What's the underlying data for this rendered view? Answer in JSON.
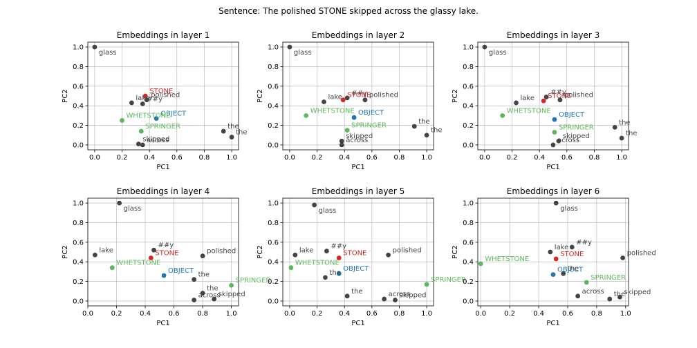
{
  "figure": {
    "suptitle": "Sentence: The polished STONE skipped across the glassy lake."
  },
  "colors": {
    "default": "#444444",
    "STONE": "#d62728",
    "OBJECT": "#1f77b4",
    "WHETSTONE": "#5cb85c",
    "SPRINGER": "#5cb85c",
    "grid": "#b0b0b0"
  },
  "chart_data": [
    {
      "type": "scatter",
      "title": "Embeddings in layer 1",
      "xlabel": "PC1",
      "ylabel": "PC2",
      "xlim": [
        -0.05,
        1.05
      ],
      "ylim": [
        -0.05,
        1.05
      ],
      "xticks": [
        "0.0",
        "0.2",
        "0.4",
        "0.6",
        "0.8",
        "1.0"
      ],
      "yticks": [
        "0.0",
        "0.2",
        "0.4",
        "0.6",
        "0.8",
        "1.0"
      ],
      "grid": true,
      "points": [
        {
          "label": "glass",
          "x": 0.0,
          "y": 1.0
        },
        {
          "label": "STONE",
          "x": 0.37,
          "y": 0.5
        },
        {
          "label": "polished",
          "x": 0.38,
          "y": 0.46
        },
        {
          "label": "lake",
          "x": 0.27,
          "y": 0.43
        },
        {
          "label": "##y",
          "x": 0.35,
          "y": 0.42
        },
        {
          "label": "OBJECT",
          "x": 0.45,
          "y": 0.27
        },
        {
          "label": "WHETSTONE",
          "x": 0.2,
          "y": 0.25
        },
        {
          "label": "SPRINGER",
          "x": 0.34,
          "y": 0.14
        },
        {
          "label": "skipped",
          "x": 0.32,
          "y": 0.01
        },
        {
          "label": "across",
          "x": 0.35,
          "y": 0.0
        },
        {
          "label": "the",
          "x": 0.94,
          "y": 0.14
        },
        {
          "label": "the",
          "x": 1.0,
          "y": 0.08
        }
      ]
    },
    {
      "type": "scatter",
      "title": "Embeddings in layer 2",
      "xlabel": "PC1",
      "ylabel": "PC2",
      "xlim": [
        -0.05,
        1.05
      ],
      "ylim": [
        -0.05,
        1.05
      ],
      "xticks": [
        "0.0",
        "0.2",
        "0.4",
        "0.6",
        "0.8",
        "1.0"
      ],
      "yticks": [
        "0.0",
        "0.2",
        "0.4",
        "0.6",
        "0.8",
        "1.0"
      ],
      "grid": true,
      "points": [
        {
          "label": "glass",
          "x": 0.0,
          "y": 1.0
        },
        {
          "label": "lake",
          "x": 0.25,
          "y": 0.44
        },
        {
          "label": "##y",
          "x": 0.42,
          "y": 0.48
        },
        {
          "label": "STONE",
          "x": 0.39,
          "y": 0.46
        },
        {
          "label": "polished",
          "x": 0.55,
          "y": 0.46
        },
        {
          "label": "WHETSTONE",
          "x": 0.12,
          "y": 0.3
        },
        {
          "label": "OBJECT",
          "x": 0.47,
          "y": 0.28
        },
        {
          "label": "SPRINGER",
          "x": 0.42,
          "y": 0.15
        },
        {
          "label": "skipped",
          "x": 0.38,
          "y": 0.04
        },
        {
          "label": "across",
          "x": 0.38,
          "y": 0.0
        },
        {
          "label": "the",
          "x": 0.91,
          "y": 0.19
        },
        {
          "label": "the",
          "x": 1.0,
          "y": 0.1
        }
      ]
    },
    {
      "type": "scatter",
      "title": "Embeddings in layer 3",
      "xlabel": "PC1",
      "ylabel": "PC2",
      "xlim": [
        -0.05,
        1.05
      ],
      "ylim": [
        -0.05,
        1.05
      ],
      "xticks": [
        "0.0",
        "0.2",
        "0.4",
        "0.6",
        "0.8",
        "1.0"
      ],
      "yticks": [
        "0.0",
        "0.2",
        "0.4",
        "0.6",
        "0.8",
        "1.0"
      ],
      "grid": true,
      "points": [
        {
          "label": "glass",
          "x": 0.0,
          "y": 1.0
        },
        {
          "label": "lake",
          "x": 0.23,
          "y": 0.43
        },
        {
          "label": "##y",
          "x": 0.45,
          "y": 0.49
        },
        {
          "label": "STONE",
          "x": 0.43,
          "y": 0.45
        },
        {
          "label": "polished",
          "x": 0.55,
          "y": 0.46
        },
        {
          "label": "WHETSTONE",
          "x": 0.13,
          "y": 0.3
        },
        {
          "label": "OBJECT",
          "x": 0.51,
          "y": 0.26
        },
        {
          "label": "SPRINGER",
          "x": 0.51,
          "y": 0.13
        },
        {
          "label": "skipped",
          "x": 0.54,
          "y": 0.04
        },
        {
          "label": "across",
          "x": 0.5,
          "y": 0.0
        },
        {
          "label": "the",
          "x": 0.95,
          "y": 0.18
        },
        {
          "label": "the",
          "x": 1.0,
          "y": 0.07
        }
      ]
    },
    {
      "type": "scatter",
      "title": "Embeddings in layer 4",
      "xlabel": "PC1",
      "ylabel": "PC2",
      "xlim": [
        0.0,
        1.05
      ],
      "ylim": [
        -0.05,
        1.05
      ],
      "xticks": [
        "0.0",
        "0.2",
        "0.4",
        "0.6",
        "0.8",
        "1.0"
      ],
      "yticks": [
        "0.0",
        "0.2",
        "0.4",
        "0.6",
        "0.8",
        "1.0"
      ],
      "grid": true,
      "points": [
        {
          "label": "glass",
          "x": 0.22,
          "y": 1.0
        },
        {
          "label": "lake",
          "x": 0.05,
          "y": 0.47
        },
        {
          "label": "##y",
          "x": 0.46,
          "y": 0.52
        },
        {
          "label": "STONE",
          "x": 0.44,
          "y": 0.44
        },
        {
          "label": "polished",
          "x": 0.8,
          "y": 0.46
        },
        {
          "label": "WHETSTONE",
          "x": 0.17,
          "y": 0.34
        },
        {
          "label": "OBJECT",
          "x": 0.53,
          "y": 0.26
        },
        {
          "label": "the",
          "x": 0.74,
          "y": 0.22
        },
        {
          "label": "SPRINGER",
          "x": 1.0,
          "y": 0.16
        },
        {
          "label": "the",
          "x": 0.8,
          "y": 0.08
        },
        {
          "label": "across",
          "x": 0.74,
          "y": 0.01
        },
        {
          "label": "skipped",
          "x": 0.88,
          "y": 0.02
        }
      ]
    },
    {
      "type": "scatter",
      "title": "Embeddings in layer 5",
      "xlabel": "PC1",
      "ylabel": "PC2",
      "xlim": [
        -0.05,
        1.05
      ],
      "ylim": [
        -0.05,
        1.05
      ],
      "xticks": [
        "0.0",
        "0.2",
        "0.4",
        "0.6",
        "0.8",
        "1.0"
      ],
      "yticks": [
        "0.0",
        "0.2",
        "0.4",
        "0.6",
        "0.8",
        "1.0"
      ],
      "grid": true,
      "points": [
        {
          "label": "glass",
          "x": 0.18,
          "y": 0.98
        },
        {
          "label": "lake",
          "x": 0.04,
          "y": 0.47
        },
        {
          "label": "##y",
          "x": 0.27,
          "y": 0.51
        },
        {
          "label": "STONE",
          "x": 0.36,
          "y": 0.44
        },
        {
          "label": "polished",
          "x": 0.72,
          "y": 0.47
        },
        {
          "label": "WHETSTONE",
          "x": 0.01,
          "y": 0.34
        },
        {
          "label": "OBJECT",
          "x": 0.36,
          "y": 0.28
        },
        {
          "label": "the",
          "x": 0.26,
          "y": 0.24
        },
        {
          "label": "the",
          "x": 0.42,
          "y": 0.05
        },
        {
          "label": "SPRINGER",
          "x": 1.0,
          "y": 0.17
        },
        {
          "label": "across",
          "x": 0.69,
          "y": 0.02
        },
        {
          "label": "skipped",
          "x": 0.77,
          "y": 0.01
        }
      ]
    },
    {
      "type": "scatter",
      "title": "Embeddings in layer 6",
      "xlabel": "PC1",
      "ylabel": "PC2",
      "xlim": [
        -0.02,
        1.02
      ],
      "ylim": [
        -0.05,
        1.05
      ],
      "xticks": [
        "0.0",
        "0.2",
        "0.4",
        "0.6",
        "0.8",
        "1.0"
      ],
      "yticks": [
        "0.0",
        "0.2",
        "0.4",
        "0.6",
        "0.8",
        "1.0"
      ],
      "grid": true,
      "points": [
        {
          "label": "glass",
          "x": 0.52,
          "y": 1.0
        },
        {
          "label": "##y",
          "x": 0.63,
          "y": 0.55
        },
        {
          "label": "lake",
          "x": 0.48,
          "y": 0.5
        },
        {
          "label": "STONE",
          "x": 0.52,
          "y": 0.43
        },
        {
          "label": "polished",
          "x": 0.98,
          "y": 0.44
        },
        {
          "label": "WHETSTONE",
          "x": 0.0,
          "y": 0.38
        },
        {
          "label": "OBJECT",
          "x": 0.5,
          "y": 0.27
        },
        {
          "label": "the",
          "x": 0.57,
          "y": 0.28
        },
        {
          "label": "SPRINGER",
          "x": 0.73,
          "y": 0.19
        },
        {
          "label": "across",
          "x": 0.67,
          "y": 0.05
        },
        {
          "label": "the",
          "x": 0.89,
          "y": 0.02
        },
        {
          "label": "skipped",
          "x": 0.96,
          "y": 0.04
        }
      ]
    }
  ]
}
